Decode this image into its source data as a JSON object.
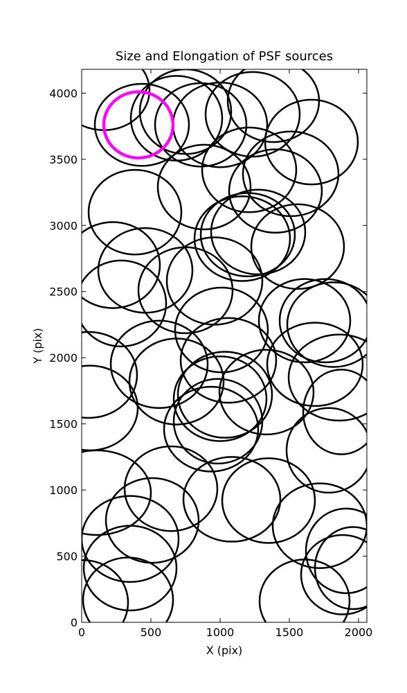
{
  "chart_data": {
    "type": "ellipse",
    "title": "Size and Elongation of PSF sources",
    "x_label": "X (pix)",
    "y_label": "Y (pix)",
    "xlim": [
      0,
      2060
    ],
    "ylim": [
      0,
      4180
    ],
    "xticks": [
      0,
      500,
      1000,
      1500,
      2000
    ],
    "yticks": [
      0,
      500,
      1000,
      1500,
      2000,
      2500,
      3000,
      3500,
      4000
    ],
    "series": [
      {
        "color": "#000000",
        "x": [
          160,
          435,
          685,
          750,
          860,
          1000,
          1235,
          1385,
          1510,
          1660,
          885,
          1210,
          1400,
          385,
          1160,
          1200,
          1275,
          1560,
          225,
          460,
          285,
          750,
          960,
          1010,
          560,
          685,
          1060,
          1610,
          1760,
          1820,
          1685,
          1860,
          50,
          60,
          1000,
          1035,
          985,
          935,
          1335,
          1785,
          1875,
          110,
          645,
          510,
          1085,
          1350,
          1720,
          350,
          350,
          335,
          1910,
          1960,
          1610,
          1885,
          10
        ],
        "values": [
          4020,
          3760,
          3810,
          3860,
          3760,
          3760,
          3840,
          3940,
          3390,
          3630,
          3290,
          3420,
          3260,
          3100,
          2900,
          2930,
          2950,
          2840,
          2700,
          2660,
          2410,
          2510,
          2580,
          2210,
          1950,
          1820,
          1980,
          2280,
          2280,
          2250,
          1950,
          1850,
          1870,
          1620,
          1690,
          1720,
          1520,
          1460,
          1740,
          1300,
          1590,
          980,
          1010,
          770,
          930,
          920,
          730,
          630,
          410,
          170,
          540,
          410,
          160,
          360,
          150
        ],
        "widths": [
          660,
          680,
          660,
          660,
          660,
          680,
          680,
          660,
          690,
          670,
          670,
          680,
          670,
          670,
          690,
          680,
          680,
          670,
          680,
          680,
          650,
          680,
          690,
          670,
          700,
          680,
          690,
          660,
          660,
          670,
          690,
          730,
          700,
          690,
          670,
          680,
          640,
          680,
          680,
          610,
          550,
          780,
          670,
          670,
          700,
          670,
          680,
          700,
          670,
          650,
          580,
          550,
          650,
          600,
          650
        ],
        "heights": [
          600,
          620,
          640,
          640,
          630,
          640,
          640,
          620,
          640,
          640,
          640,
          640,
          630,
          640,
          640,
          630,
          640,
          640,
          650,
          640,
          650,
          650,
          660,
          640,
          660,
          650,
          640,
          630,
          630,
          640,
          630,
          650,
          650,
          640,
          640,
          650,
          640,
          640,
          640,
          640,
          640,
          640,
          640,
          640,
          640,
          640,
          640,
          650,
          640,
          640,
          640,
          620,
          630,
          600,
          640
        ]
      },
      {
        "color": "#ff00ff",
        "x": [
          410
        ],
        "values": [
          3760
        ],
        "widths": [
          500
        ],
        "heights": [
          500
        ]
      }
    ]
  }
}
